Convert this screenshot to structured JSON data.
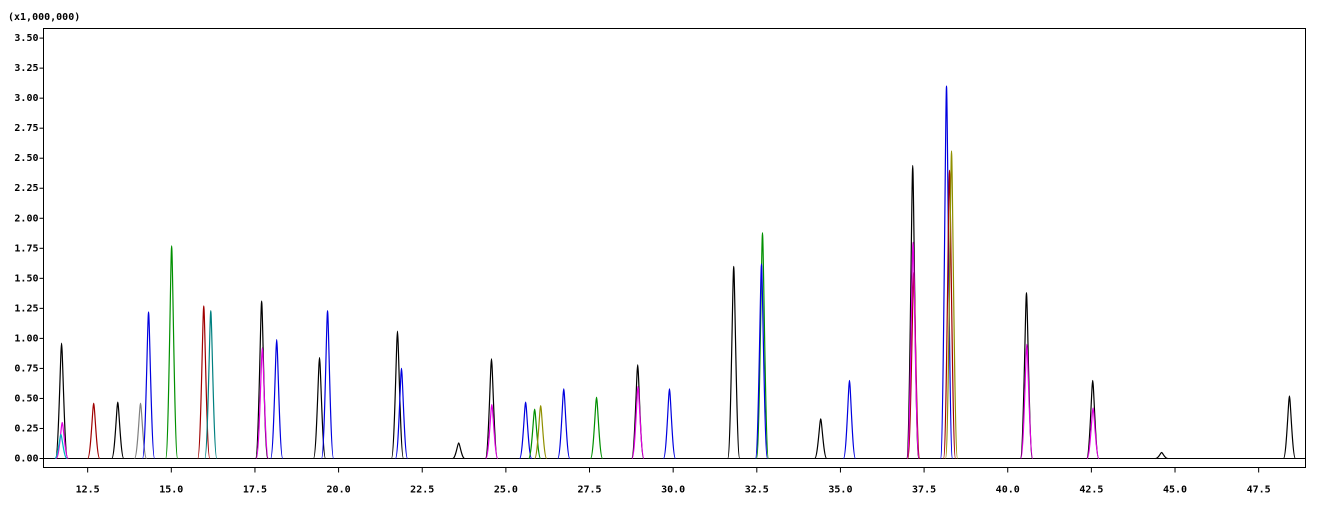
{
  "chart_data": {
    "type": "chromatogram",
    "y_multiplier": "(x1,000,000)",
    "xlim": [
      11.18,
      48.9
    ],
    "ylim": [
      -0.075,
      3.58
    ],
    "xticks": [
      {
        "value": 12.5,
        "label": "12.5"
      },
      {
        "value": 15,
        "label": "15.0"
      },
      {
        "value": 17.5,
        "label": "17.5"
      },
      {
        "value": 20,
        "label": "20.0"
      },
      {
        "value": 22.5,
        "label": "22.5"
      },
      {
        "value": 25,
        "label": "25.0"
      },
      {
        "value": 27.5,
        "label": "27.5"
      },
      {
        "value": 30,
        "label": "30.0"
      },
      {
        "value": 32.5,
        "label": "32.5"
      },
      {
        "value": 35,
        "label": "35.0"
      },
      {
        "value": 37.5,
        "label": "37.5"
      },
      {
        "value": 40,
        "label": "40.0"
      },
      {
        "value": 42.5,
        "label": "42.5"
      },
      {
        "value": 45,
        "label": "45.0"
      },
      {
        "value": 47.5,
        "label": "47.5"
      }
    ],
    "yticks": [
      {
        "value": 0,
        "label": "0.00"
      },
      {
        "value": 0.25,
        "label": "0.25"
      },
      {
        "value": 0.5,
        "label": "0.50"
      },
      {
        "value": 0.75,
        "label": "0.75"
      },
      {
        "value": 1,
        "label": "1.00"
      },
      {
        "value": 1.25,
        "label": "1.25"
      },
      {
        "value": 1.5,
        "label": "1.50"
      },
      {
        "value": 1.75,
        "label": "1.75"
      },
      {
        "value": 2,
        "label": "2.00"
      },
      {
        "value": 2.25,
        "label": "2.25"
      },
      {
        "value": 2.5,
        "label": "2.50"
      },
      {
        "value": 2.75,
        "label": "2.75"
      },
      {
        "value": 3,
        "label": "3.00"
      },
      {
        "value": 3.25,
        "label": "3.25"
      },
      {
        "value": 3.5,
        "label": "3.50"
      }
    ],
    "baseline_color": "#000000",
    "peaks": [
      {
        "x": 11.72,
        "y": 0.96,
        "color": "#000000"
      },
      {
        "x": 11.74,
        "y": 0.3,
        "color": "#e000e0"
      },
      {
        "x": 11.7,
        "y": 0.2,
        "color": "#00b0c0"
      },
      {
        "x": 12.68,
        "y": 0.46,
        "color": "#a00000"
      },
      {
        "x": 13.4,
        "y": 0.47,
        "color": "#000000"
      },
      {
        "x": 14.08,
        "y": 0.46,
        "color": "#808080"
      },
      {
        "x": 14.32,
        "y": 1.22,
        "color": "#0000e0"
      },
      {
        "x": 15.01,
        "y": 1.77,
        "color": "#009000"
      },
      {
        "x": 15.97,
        "y": 1.27,
        "color": "#a00000"
      },
      {
        "x": 16.18,
        "y": 1.23,
        "color": "#008080"
      },
      {
        "x": 17.7,
        "y": 1.31,
        "color": "#000000"
      },
      {
        "x": 17.72,
        "y": 0.92,
        "color": "#e000e0"
      },
      {
        "x": 18.15,
        "y": 0.99,
        "color": "#0000e0"
      },
      {
        "x": 19.43,
        "y": 0.84,
        "color": "#000000"
      },
      {
        "x": 19.67,
        "y": 1.23,
        "color": "#0000e0"
      },
      {
        "x": 21.76,
        "y": 1.06,
        "color": "#000000"
      },
      {
        "x": 21.88,
        "y": 0.75,
        "color": "#0000e0"
      },
      {
        "x": 23.59,
        "y": 0.13,
        "color": "#000000"
      },
      {
        "x": 24.57,
        "y": 0.83,
        "color": "#000000"
      },
      {
        "x": 24.58,
        "y": 0.45,
        "color": "#e000e0"
      },
      {
        "x": 25.59,
        "y": 0.47,
        "color": "#0000e0"
      },
      {
        "x": 25.86,
        "y": 0.41,
        "color": "#009000"
      },
      {
        "x": 26.04,
        "y": 0.44,
        "color": "#909000"
      },
      {
        "x": 26.73,
        "y": 0.58,
        "color": "#0000e0"
      },
      {
        "x": 27.71,
        "y": 0.51,
        "color": "#009000"
      },
      {
        "x": 28.94,
        "y": 0.78,
        "color": "#000000"
      },
      {
        "x": 28.95,
        "y": 0.6,
        "color": "#e000e0"
      },
      {
        "x": 29.89,
        "y": 0.58,
        "color": "#0000e0"
      },
      {
        "x": 31.81,
        "y": 1.6,
        "color": "#000000"
      },
      {
        "x": 32.67,
        "y": 1.88,
        "color": "#009000"
      },
      {
        "x": 32.64,
        "y": 1.62,
        "color": "#0000e0"
      },
      {
        "x": 34.41,
        "y": 0.33,
        "color": "#000000"
      },
      {
        "x": 35.27,
        "y": 0.65,
        "color": "#0000e0"
      },
      {
        "x": 37.16,
        "y": 2.44,
        "color": "#000000"
      },
      {
        "x": 37.19,
        "y": 1.55,
        "color": "#a00000"
      },
      {
        "x": 37.17,
        "y": 1.8,
        "color": "#e000e0"
      },
      {
        "x": 38.17,
        "y": 3.1,
        "color": "#0000e0"
      },
      {
        "x": 38.26,
        "y": 2.4,
        "color": "#a00000"
      },
      {
        "x": 38.32,
        "y": 2.56,
        "color": "#909000"
      },
      {
        "x": 40.56,
        "y": 1.38,
        "color": "#000000"
      },
      {
        "x": 40.57,
        "y": 0.95,
        "color": "#e000e0"
      },
      {
        "x": 42.54,
        "y": 0.65,
        "color": "#000000"
      },
      {
        "x": 42.55,
        "y": 0.42,
        "color": "#e000e0"
      },
      {
        "x": 44.6,
        "y": 0.05,
        "color": "#000000"
      },
      {
        "x": 48.42,
        "y": 0.52,
        "color": "#000000"
      }
    ]
  }
}
